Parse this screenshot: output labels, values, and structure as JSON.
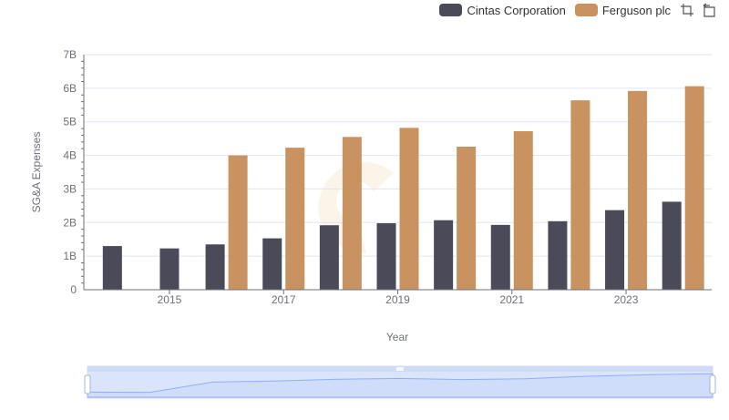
{
  "legend": {
    "items": [
      "Cintas Corporation",
      "Ferguson plc"
    ]
  },
  "colors": {
    "cintas": "#4a4a58",
    "ferguson": "#c89360",
    "grid": "#e0e6f1",
    "axis": "#6e7079",
    "slider_fill": "#d4e0fb",
    "slider_line": "#8fb0f7"
  },
  "toolbox": {
    "icons": [
      "zoom-icon",
      "restore-icon"
    ]
  },
  "chart_data": {
    "type": "bar",
    "xlabel": "Year",
    "ylabel": "SG&A Expenses",
    "ylim": [
      0,
      7000000000
    ],
    "y_ticks": [
      "0",
      "1B",
      "2B",
      "3B",
      "4B",
      "5B",
      "6B",
      "7B"
    ],
    "x_tick_labels": [
      "2015",
      "2017",
      "2019",
      "2021",
      "2023"
    ],
    "categories": [
      "2014",
      "2015",
      "2016",
      "2017",
      "2018",
      "2019",
      "2020",
      "2021",
      "2022",
      "2023",
      "2024"
    ],
    "series": [
      {
        "name": "Cintas Corporation",
        "values": [
          1300000000,
          1230000000,
          1350000000,
          1530000000,
          1920000000,
          1980000000,
          2070000000,
          1930000000,
          2040000000,
          2370000000,
          2620000000
        ]
      },
      {
        "name": "Ferguson plc",
        "values": [
          null,
          null,
          4000000000,
          4230000000,
          4550000000,
          4820000000,
          4260000000,
          4720000000,
          5640000000,
          5920000000,
          6060000000
        ]
      }
    ],
    "grid": true,
    "legend_position": "top-right",
    "data_zoom": true
  }
}
